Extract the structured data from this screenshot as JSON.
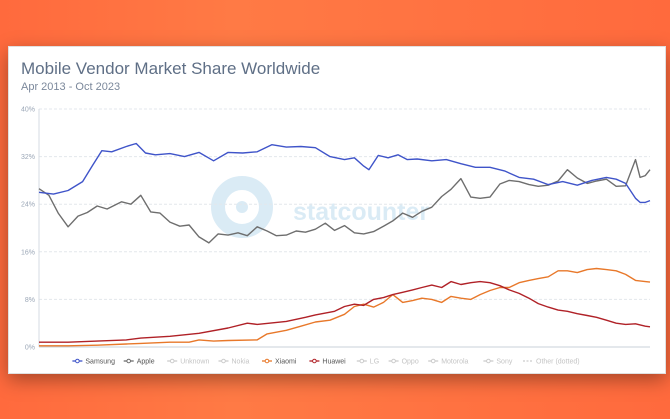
{
  "page": {
    "title": "Mobile Vendor Market Share Worldwide",
    "subtitle": "Apr 2013 - Oct 2023",
    "watermark": "statcounter"
  },
  "chart_data": {
    "type": "line",
    "title": "Mobile Vendor Market Share Worldwide",
    "subtitle": "Apr 2013 - Oct 2023",
    "ylim": [
      0,
      40
    ],
    "yticks": [
      "0%",
      "8%",
      "16%",
      "24%",
      "32%",
      "40%"
    ],
    "ytick_values": [
      0,
      8,
      16,
      24,
      32,
      40
    ],
    "grid": true,
    "legend_position": "bottom",
    "xrange": [
      2013.25,
      2023.75
    ],
    "series": [
      {
        "name": "Samsung",
        "color": "#3f54c9",
        "visible": true,
        "points": [
          [
            2013.25,
            26.0
          ],
          [
            2013.5,
            25.7
          ],
          [
            2013.75,
            26.3
          ],
          [
            2014.0,
            27.8
          ],
          [
            2014.17,
            30.5
          ],
          [
            2014.33,
            33.0
          ],
          [
            2014.5,
            32.8
          ],
          [
            2014.75,
            33.7
          ],
          [
            2014.92,
            34.2
          ],
          [
            2015.08,
            32.6
          ],
          [
            2015.25,
            32.3
          ],
          [
            2015.5,
            32.5
          ],
          [
            2015.75,
            32.0
          ],
          [
            2016.0,
            32.7
          ],
          [
            2016.25,
            31.3
          ],
          [
            2016.5,
            32.7
          ],
          [
            2016.75,
            32.6
          ],
          [
            2017.0,
            32.8
          ],
          [
            2017.25,
            34.0
          ],
          [
            2017.5,
            33.6
          ],
          [
            2017.75,
            33.7
          ],
          [
            2018.0,
            33.5
          ],
          [
            2018.25,
            32.0
          ],
          [
            2018.5,
            31.5
          ],
          [
            2018.67,
            31.8
          ],
          [
            2018.83,
            30.4
          ],
          [
            2018.92,
            29.8
          ],
          [
            2019.08,
            32.2
          ],
          [
            2019.25,
            31.8
          ],
          [
            2019.42,
            32.3
          ],
          [
            2019.58,
            31.5
          ],
          [
            2019.75,
            31.6
          ],
          [
            2020.0,
            31.3
          ],
          [
            2020.25,
            31.5
          ],
          [
            2020.5,
            30.8
          ],
          [
            2020.75,
            30.2
          ],
          [
            2021.0,
            30.2
          ],
          [
            2021.25,
            29.6
          ],
          [
            2021.5,
            28.5
          ],
          [
            2021.75,
            28.2
          ],
          [
            2022.0,
            27.3
          ],
          [
            2022.25,
            27.8
          ],
          [
            2022.5,
            27.2
          ],
          [
            2022.75,
            28.0
          ],
          [
            2023.0,
            28.5
          ],
          [
            2023.17,
            28.2
          ],
          [
            2023.33,
            27.5
          ],
          [
            2023.5,
            25.0
          ],
          [
            2023.58,
            24.3
          ],
          [
            2023.67,
            24.3
          ],
          [
            2023.75,
            24.6
          ]
        ]
      },
      {
        "name": "Apple",
        "color": "#6e6e6e",
        "visible": true,
        "points": [
          [
            2013.25,
            26.6
          ],
          [
            2013.42,
            25.5
          ],
          [
            2013.58,
            22.5
          ],
          [
            2013.75,
            20.2
          ],
          [
            2013.92,
            22.0
          ],
          [
            2014.08,
            22.6
          ],
          [
            2014.25,
            23.7
          ],
          [
            2014.42,
            23.2
          ],
          [
            2014.67,
            24.4
          ],
          [
            2014.83,
            24.0
          ],
          [
            2015.0,
            25.5
          ],
          [
            2015.17,
            22.7
          ],
          [
            2015.33,
            22.5
          ],
          [
            2015.5,
            21.0
          ],
          [
            2015.67,
            20.3
          ],
          [
            2015.83,
            20.5
          ],
          [
            2016.0,
            18.5
          ],
          [
            2016.17,
            17.5
          ],
          [
            2016.33,
            19.0
          ],
          [
            2016.5,
            18.8
          ],
          [
            2016.67,
            19.2
          ],
          [
            2016.83,
            18.7
          ],
          [
            2017.0,
            20.2
          ],
          [
            2017.17,
            19.5
          ],
          [
            2017.33,
            18.7
          ],
          [
            2017.5,
            18.8
          ],
          [
            2017.67,
            19.5
          ],
          [
            2017.83,
            19.3
          ],
          [
            2018.0,
            19.8
          ],
          [
            2018.17,
            20.8
          ],
          [
            2018.33,
            19.6
          ],
          [
            2018.5,
            20.4
          ],
          [
            2018.67,
            19.2
          ],
          [
            2018.83,
            19.0
          ],
          [
            2019.0,
            19.4
          ],
          [
            2019.17,
            20.3
          ],
          [
            2019.33,
            21.2
          ],
          [
            2019.5,
            22.5
          ],
          [
            2019.67,
            21.8
          ],
          [
            2019.83,
            22.8
          ],
          [
            2020.0,
            23.5
          ],
          [
            2020.17,
            25.3
          ],
          [
            2020.33,
            26.5
          ],
          [
            2020.5,
            28.3
          ],
          [
            2020.67,
            25.2
          ],
          [
            2020.83,
            25.0
          ],
          [
            2021.0,
            25.2
          ],
          [
            2021.17,
            27.4
          ],
          [
            2021.33,
            28.0
          ],
          [
            2021.5,
            27.8
          ],
          [
            2021.67,
            27.3
          ],
          [
            2021.83,
            27.0
          ],
          [
            2022.0,
            27.2
          ],
          [
            2022.17,
            27.9
          ],
          [
            2022.33,
            29.8
          ],
          [
            2022.5,
            28.4
          ],
          [
            2022.67,
            27.5
          ],
          [
            2022.83,
            27.9
          ],
          [
            2023.0,
            28.2
          ],
          [
            2023.17,
            27.0
          ],
          [
            2023.33,
            27.1
          ],
          [
            2023.5,
            31.5
          ],
          [
            2023.58,
            28.5
          ],
          [
            2023.67,
            28.8
          ],
          [
            2023.75,
            29.8
          ]
        ]
      },
      {
        "name": "Unknown",
        "color": "#cccccc",
        "visible": false,
        "points": []
      },
      {
        "name": "Nokia",
        "color": "#cccccc",
        "visible": false,
        "points": []
      },
      {
        "name": "Xiaomi",
        "color": "#e8782a",
        "visible": true,
        "points": [
          [
            2013.25,
            0.2
          ],
          [
            2013.75,
            0.2
          ],
          [
            2014.25,
            0.3
          ],
          [
            2014.75,
            0.5
          ],
          [
            2015.0,
            0.6
          ],
          [
            2015.5,
            0.8
          ],
          [
            2015.83,
            0.8
          ],
          [
            2016.0,
            1.2
          ],
          [
            2016.25,
            1.0
          ],
          [
            2016.5,
            1.1
          ],
          [
            2017.0,
            1.2
          ],
          [
            2017.17,
            2.2
          ],
          [
            2017.5,
            2.8
          ],
          [
            2017.75,
            3.5
          ],
          [
            2018.0,
            4.2
          ],
          [
            2018.25,
            4.5
          ],
          [
            2018.5,
            5.5
          ],
          [
            2018.67,
            6.8
          ],
          [
            2018.83,
            7.2
          ],
          [
            2019.0,
            6.7
          ],
          [
            2019.17,
            7.5
          ],
          [
            2019.33,
            8.8
          ],
          [
            2019.5,
            7.5
          ],
          [
            2019.67,
            7.8
          ],
          [
            2019.83,
            8.2
          ],
          [
            2020.0,
            8.0
          ],
          [
            2020.17,
            7.5
          ],
          [
            2020.33,
            8.5
          ],
          [
            2020.5,
            8.2
          ],
          [
            2020.67,
            8.0
          ],
          [
            2020.83,
            8.8
          ],
          [
            2021.0,
            9.5
          ],
          [
            2021.17,
            10.0
          ],
          [
            2021.33,
            10.0
          ],
          [
            2021.5,
            10.8
          ],
          [
            2021.67,
            11.2
          ],
          [
            2021.83,
            11.5
          ],
          [
            2022.0,
            11.8
          ],
          [
            2022.17,
            12.8
          ],
          [
            2022.33,
            12.8
          ],
          [
            2022.5,
            12.5
          ],
          [
            2022.67,
            13.0
          ],
          [
            2022.83,
            13.2
          ],
          [
            2023.0,
            13.0
          ],
          [
            2023.17,
            12.8
          ],
          [
            2023.33,
            12.2
          ],
          [
            2023.5,
            11.2
          ],
          [
            2023.67,
            11.0
          ],
          [
            2023.75,
            10.9
          ]
        ]
      },
      {
        "name": "Huawei",
        "color": "#b02127",
        "visible": true,
        "points": [
          [
            2013.25,
            0.8
          ],
          [
            2013.75,
            0.8
          ],
          [
            2014.25,
            1.0
          ],
          [
            2014.75,
            1.2
          ],
          [
            2015.0,
            1.5
          ],
          [
            2015.5,
            1.8
          ],
          [
            2016.0,
            2.3
          ],
          [
            2016.5,
            3.2
          ],
          [
            2016.83,
            4.0
          ],
          [
            2017.0,
            3.8
          ],
          [
            2017.5,
            4.3
          ],
          [
            2017.83,
            5.0
          ],
          [
            2018.0,
            5.4
          ],
          [
            2018.33,
            6.0
          ],
          [
            2018.5,
            6.8
          ],
          [
            2018.67,
            7.2
          ],
          [
            2018.83,
            7.0
          ],
          [
            2019.0,
            8.0
          ],
          [
            2019.17,
            8.3
          ],
          [
            2019.33,
            8.8
          ],
          [
            2019.5,
            9.2
          ],
          [
            2019.67,
            9.6
          ],
          [
            2019.83,
            10.0
          ],
          [
            2020.0,
            10.4
          ],
          [
            2020.17,
            10.0
          ],
          [
            2020.33,
            11.0
          ],
          [
            2020.5,
            10.5
          ],
          [
            2020.67,
            10.8
          ],
          [
            2020.83,
            11.0
          ],
          [
            2021.0,
            10.8
          ],
          [
            2021.17,
            10.3
          ],
          [
            2021.33,
            9.6
          ],
          [
            2021.5,
            9.0
          ],
          [
            2021.67,
            8.2
          ],
          [
            2021.83,
            7.3
          ],
          [
            2022.0,
            6.7
          ],
          [
            2022.17,
            6.2
          ],
          [
            2022.33,
            6.0
          ],
          [
            2022.5,
            5.6
          ],
          [
            2022.67,
            5.3
          ],
          [
            2022.83,
            5.0
          ],
          [
            2023.0,
            4.5
          ],
          [
            2023.17,
            4.0
          ],
          [
            2023.33,
            3.8
          ],
          [
            2023.5,
            3.9
          ],
          [
            2023.67,
            3.5
          ],
          [
            2023.75,
            3.4
          ]
        ]
      },
      {
        "name": "LG",
        "color": "#cccccc",
        "visible": false,
        "points": []
      },
      {
        "name": "Oppo",
        "color": "#cccccc",
        "visible": false,
        "points": []
      },
      {
        "name": "Motorola",
        "color": "#cccccc",
        "visible": false,
        "points": []
      },
      {
        "name": "Sony",
        "color": "#cccccc",
        "visible": false,
        "points": []
      },
      {
        "name": "Other (dotted)",
        "color": "#cccccc",
        "visible": false,
        "points": []
      }
    ]
  }
}
